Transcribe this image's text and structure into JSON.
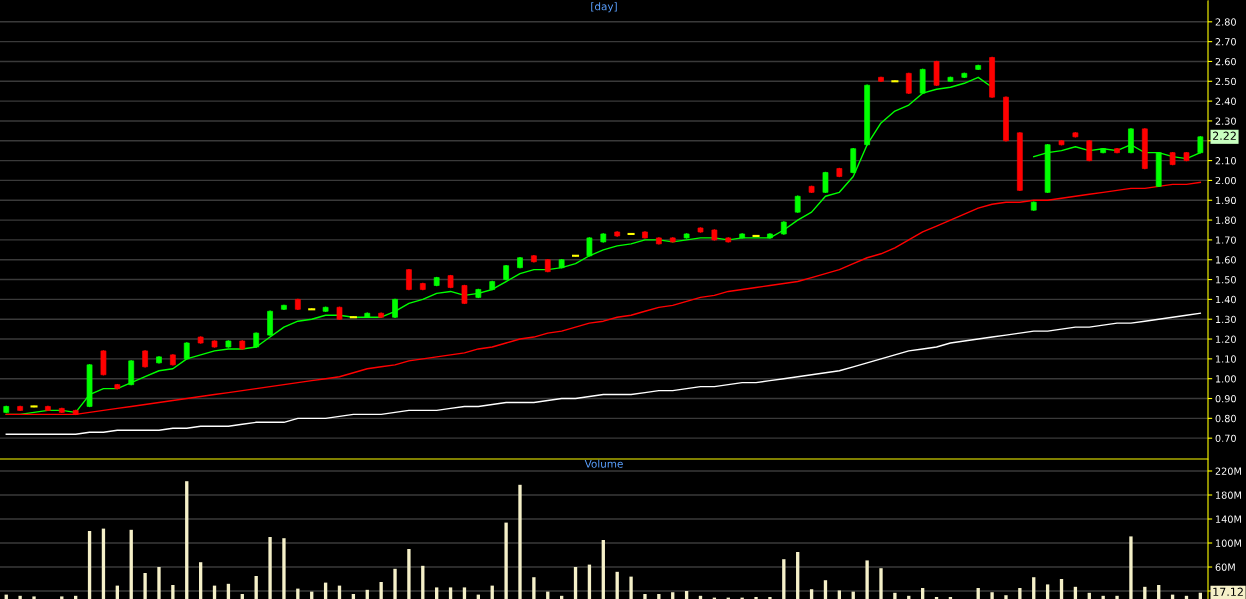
{
  "chart_data": [
    {
      "type": "candlestick",
      "title": "[day]",
      "categories": [
        null,
        null,
        null,
        null,
        null,
        null,
        null,
        null,
        null,
        null,
        null,
        null,
        null,
        null,
        null,
        null,
        null,
        null,
        null,
        null,
        null,
        null,
        null,
        null,
        null,
        null,
        null,
        null,
        null,
        null,
        null,
        null,
        null,
        null,
        null,
        null,
        null,
        null,
        null,
        null,
        null,
        null,
        null,
        null,
        null,
        null,
        null,
        null,
        null,
        null,
        null,
        null,
        null,
        null,
        null,
        null,
        null,
        null,
        null,
        null,
        null,
        null,
        null,
        null,
        null,
        null,
        null,
        null,
        null,
        null,
        null,
        null,
        null,
        null,
        null,
        null,
        null,
        null,
        null,
        null,
        null,
        null,
        null,
        null,
        null,
        null,
        null
      ],
      "ohlc": [
        [
          0.83,
          0.86,
          0.83,
          0.86
        ],
        [
          0.86,
          0.86,
          0.84,
          0.84
        ],
        [
          0.86,
          0.86,
          0.86,
          0.86
        ],
        [
          0.86,
          0.86,
          0.84,
          0.84
        ],
        [
          0.85,
          0.85,
          0.83,
          0.83
        ],
        [
          0.84,
          0.84,
          0.82,
          0.82
        ],
        [
          0.86,
          1.07,
          0.86,
          1.07
        ],
        [
          1.14,
          1.14,
          1.02,
          1.02
        ],
        [
          0.97,
          0.97,
          0.95,
          0.95
        ],
        [
          0.97,
          1.09,
          0.97,
          1.09
        ],
        [
          1.14,
          1.14,
          1.06,
          1.06
        ],
        [
          1.08,
          1.11,
          1.08,
          1.11
        ],
        [
          1.12,
          1.12,
          1.07,
          1.07
        ],
        [
          1.1,
          1.18,
          1.1,
          1.18
        ],
        [
          1.21,
          1.21,
          1.18,
          1.18
        ],
        [
          1.19,
          1.19,
          1.16,
          1.16
        ],
        [
          1.16,
          1.19,
          1.16,
          1.19
        ],
        [
          1.19,
          1.19,
          1.15,
          1.15
        ],
        [
          1.16,
          1.23,
          1.16,
          1.23
        ],
        [
          1.22,
          1.34,
          1.22,
          1.34
        ],
        [
          1.35,
          1.37,
          1.35,
          1.37
        ],
        [
          1.4,
          1.4,
          1.35,
          1.35
        ],
        [
          1.35,
          1.35,
          1.35,
          1.35
        ],
        [
          1.34,
          1.36,
          1.34,
          1.36
        ],
        [
          1.36,
          1.36,
          1.3,
          1.3
        ],
        [
          1.31,
          1.31,
          1.31,
          1.31
        ],
        [
          1.31,
          1.33,
          1.31,
          1.33
        ],
        [
          1.33,
          1.33,
          1.31,
          1.31
        ],
        [
          1.31,
          1.4,
          1.31,
          1.4
        ],
        [
          1.55,
          1.55,
          1.45,
          1.45
        ],
        [
          1.48,
          1.48,
          1.45,
          1.45
        ],
        [
          1.47,
          1.51,
          1.47,
          1.51
        ],
        [
          1.52,
          1.52,
          1.46,
          1.46
        ],
        [
          1.47,
          1.47,
          1.38,
          1.38
        ],
        [
          1.41,
          1.45,
          1.41,
          1.45
        ],
        [
          1.45,
          1.49,
          1.45,
          1.49
        ],
        [
          1.5,
          1.57,
          1.5,
          1.57
        ],
        [
          1.56,
          1.61,
          1.56,
          1.61
        ],
        [
          1.62,
          1.62,
          1.59,
          1.59
        ],
        [
          1.6,
          1.6,
          1.54,
          1.54
        ],
        [
          1.56,
          1.6,
          1.56,
          1.6
        ],
        [
          1.62,
          1.62,
          1.62,
          1.62
        ],
        [
          1.62,
          1.71,
          1.62,
          1.71
        ],
        [
          1.69,
          1.73,
          1.69,
          1.73
        ],
        [
          1.74,
          1.74,
          1.72,
          1.72
        ],
        [
          1.73,
          1.73,
          1.73,
          1.73
        ],
        [
          1.74,
          1.74,
          1.71,
          1.71
        ],
        [
          1.71,
          1.71,
          1.68,
          1.68
        ],
        [
          1.71,
          1.71,
          1.69,
          1.69
        ],
        [
          1.71,
          1.73,
          1.71,
          1.73
        ],
        [
          1.76,
          1.76,
          1.74,
          1.74
        ],
        [
          1.75,
          1.75,
          1.7,
          1.7
        ],
        [
          1.71,
          1.71,
          1.69,
          1.69
        ],
        [
          1.71,
          1.73,
          1.71,
          1.73
        ],
        [
          1.72,
          1.72,
          1.72,
          1.72
        ],
        [
          1.71,
          1.73,
          1.71,
          1.73
        ],
        [
          1.73,
          1.79,
          1.73,
          1.79
        ],
        [
          1.84,
          1.92,
          1.84,
          1.92
        ],
        [
          1.97,
          1.97,
          1.94,
          1.94
        ],
        [
          1.94,
          2.04,
          1.94,
          2.04
        ],
        [
          2.06,
          2.06,
          2.02,
          2.02
        ],
        [
          2.04,
          2.16,
          2.04,
          2.16
        ],
        [
          2.18,
          2.48,
          2.18,
          2.48
        ],
        [
          2.52,
          2.52,
          2.5,
          2.5
        ],
        [
          2.5,
          2.5,
          2.5,
          2.5
        ],
        [
          2.54,
          2.54,
          2.44,
          2.44
        ],
        [
          2.44,
          2.56,
          2.44,
          2.56
        ],
        [
          2.6,
          2.6,
          2.48,
          2.48
        ],
        [
          2.5,
          2.52,
          2.5,
          2.52
        ],
        [
          2.52,
          2.54,
          2.52,
          2.54
        ],
        [
          2.56,
          2.58,
          2.56,
          2.58
        ],
        [
          2.62,
          2.62,
          2.42,
          2.42
        ],
        [
          2.42,
          2.42,
          2.2,
          2.2
        ],
        [
          2.24,
          2.24,
          1.95,
          1.95
        ],
        [
          1.85,
          1.89,
          1.85,
          1.89
        ],
        [
          1.94,
          2.18,
          1.94,
          2.18
        ],
        [
          2.2,
          2.2,
          2.18,
          2.18
        ],
        [
          2.24,
          2.24,
          2.22,
          2.22
        ],
        [
          2.2,
          2.2,
          2.1,
          2.1
        ],
        [
          2.14,
          2.16,
          2.14,
          2.16
        ],
        [
          2.16,
          2.16,
          2.14,
          2.14
        ],
        [
          2.14,
          2.26,
          2.14,
          2.26
        ],
        [
          2.26,
          2.26,
          2.06,
          2.06
        ],
        [
          1.97,
          2.14,
          1.97,
          2.14
        ],
        [
          2.14,
          2.14,
          2.08,
          2.08
        ],
        [
          2.14,
          2.14,
          2.1,
          2.1
        ],
        [
          2.14,
          2.22,
          2.14,
          2.22
        ]
      ],
      "series": [
        {
          "type": "line",
          "color": "#00ff00",
          "values": [
            0.82,
            0.82,
            0.83,
            0.84,
            0.84,
            0.83,
            0.92,
            0.95,
            0.95,
            0.98,
            1.01,
            1.04,
            1.05,
            1.1,
            1.12,
            1.14,
            1.15,
            1.15,
            1.16,
            1.21,
            1.26,
            1.29,
            1.3,
            1.32,
            1.32,
            1.31,
            1.31,
            1.31,
            1.34,
            1.38,
            1.4,
            1.43,
            1.44,
            1.42,
            1.43,
            1.45,
            1.49,
            1.53,
            1.55,
            1.55,
            1.56,
            1.58,
            1.62,
            1.65,
            1.67,
            1.68,
            1.7,
            1.7,
            1.69,
            1.7,
            1.71,
            1.71,
            1.7,
            1.71,
            1.71,
            1.71,
            1.75,
            1.8,
            1.84,
            1.92,
            1.94,
            2.02,
            2.18,
            2.29,
            2.35,
            2.38,
            2.44,
            2.46,
            2.47,
            2.49,
            2.52,
            2.47,
            null,
            null,
            2.12,
            2.14,
            2.15,
            2.17,
            2.15,
            2.16,
            2.15,
            2.18,
            2.14,
            2.14,
            2.12,
            2.11,
            2.14
          ]
        },
        {
          "type": "line",
          "color": "#ff0000",
          "values": [
            0.82,
            0.82,
            0.82,
            0.82,
            0.82,
            0.82,
            0.83,
            0.84,
            0.85,
            0.86,
            0.87,
            0.88,
            0.89,
            0.9,
            0.91,
            0.92,
            0.93,
            0.94,
            0.95,
            0.96,
            0.97,
            0.98,
            0.99,
            1.0,
            1.01,
            1.03,
            1.05,
            1.06,
            1.07,
            1.09,
            1.1,
            1.11,
            1.12,
            1.13,
            1.15,
            1.16,
            1.18,
            1.2,
            1.21,
            1.23,
            1.24,
            1.26,
            1.28,
            1.29,
            1.31,
            1.32,
            1.34,
            1.36,
            1.37,
            1.39,
            1.41,
            1.42,
            1.44,
            1.45,
            1.46,
            1.47,
            1.48,
            1.49,
            1.51,
            1.53,
            1.55,
            1.58,
            1.61,
            1.63,
            1.66,
            1.7,
            1.74,
            1.77,
            1.8,
            1.83,
            1.86,
            1.88,
            1.89,
            1.89,
            1.9,
            1.9,
            1.91,
            1.92,
            1.93,
            1.94,
            1.95,
            1.96,
            1.96,
            1.97,
            1.98,
            1.98,
            1.99
          ]
        },
        {
          "type": "line",
          "color": "#ffffff",
          "values": [
            0.72,
            0.72,
            0.72,
            0.72,
            0.72,
            0.72,
            0.73,
            0.73,
            0.74,
            0.74,
            0.74,
            0.74,
            0.75,
            0.75,
            0.76,
            0.76,
            0.76,
            0.77,
            0.78,
            0.78,
            0.78,
            0.8,
            0.8,
            0.8,
            0.81,
            0.82,
            0.82,
            0.82,
            0.83,
            0.84,
            0.84,
            0.84,
            0.85,
            0.86,
            0.86,
            0.87,
            0.88,
            0.88,
            0.88,
            0.89,
            0.9,
            0.9,
            0.91,
            0.92,
            0.92,
            0.92,
            0.93,
            0.94,
            0.94,
            0.95,
            0.96,
            0.96,
            0.97,
            0.98,
            0.98,
            0.99,
            1.0,
            1.01,
            1.02,
            1.03,
            1.04,
            1.06,
            1.08,
            1.1,
            1.12,
            1.14,
            1.15,
            1.16,
            1.18,
            1.19,
            1.2,
            1.21,
            1.22,
            1.23,
            1.24,
            1.24,
            1.25,
            1.26,
            1.26,
            1.27,
            1.28,
            1.28,
            1.29,
            1.3,
            1.31,
            1.32,
            1.33
          ]
        }
      ],
      "ylim": [
        0.6,
        2.91
      ],
      "yticks": [
        {
          "value": 0.7,
          "label": "0.70"
        },
        {
          "value": 0.8,
          "label": "0.80"
        },
        {
          "value": 0.9,
          "label": "0.90"
        },
        {
          "value": 1.0,
          "label": "1.00"
        },
        {
          "value": 1.1,
          "label": "1.10"
        },
        {
          "value": 1.2,
          "label": "1.20"
        },
        {
          "value": 1.3,
          "label": "1.30"
        },
        {
          "value": 1.4,
          "label": "1.40"
        },
        {
          "value": 1.5,
          "label": "1.50"
        },
        {
          "value": 1.6,
          "label": "1.60"
        },
        {
          "value": 1.7,
          "label": "1.70"
        },
        {
          "value": 1.8,
          "label": "1.80"
        },
        {
          "value": 1.9,
          "label": "1.90"
        },
        {
          "value": 2.0,
          "label": "2.00"
        },
        {
          "value": 2.1,
          "label": "2.10"
        },
        {
          "value": 2.2,
          "label": null
        },
        {
          "value": 2.3,
          "label": "2.30"
        },
        {
          "value": 2.4,
          "label": "2.40"
        },
        {
          "value": 2.5,
          "label": "2.50"
        },
        {
          "value": 2.6,
          "label": "2.60"
        },
        {
          "value": 2.7,
          "label": "2.70"
        },
        {
          "value": 2.8,
          "label": "2.80"
        }
      ],
      "annotations": [
        {
          "text": "2.22",
          "y": 2.22
        }
      ],
      "grid": "y",
      "legend": false
    },
    {
      "type": "bar",
      "title": "Volume",
      "categories": [
        null,
        null,
        null,
        null,
        null,
        null,
        null,
        null,
        null,
        null,
        null,
        null,
        null,
        null,
        null,
        null,
        null,
        null,
        null,
        null,
        null,
        null,
        null,
        null,
        null,
        null,
        null,
        null,
        null,
        null,
        null,
        null,
        null,
        null,
        null,
        null,
        null,
        null,
        null,
        null,
        null,
        null,
        null,
        null,
        null,
        null,
        null,
        null,
        null,
        null,
        null,
        null,
        null,
        null,
        null,
        null,
        null,
        null,
        null,
        null,
        null,
        null,
        null,
        null,
        null,
        null,
        null,
        null,
        null,
        null,
        null,
        null,
        null,
        null,
        null,
        null,
        null,
        null,
        null,
        null,
        null,
        null,
        null,
        null,
        null,
        null,
        null
      ],
      "values": [
        14,
        12,
        11,
        null,
        11,
        12,
        120,
        124,
        29,
        122,
        50,
        60,
        30,
        203,
        68,
        29,
        32,
        15,
        45,
        110,
        108,
        24,
        19,
        34,
        29,
        15,
        22,
        35,
        57,
        90,
        62,
        26,
        26,
        26,
        14,
        29,
        134,
        197,
        43,
        19,
        12,
        60,
        64,
        105,
        52,
        44,
        15,
        15,
        18,
        20,
        12,
        9,
        9,
        9,
        10,
        10,
        73,
        85,
        23,
        38,
        21,
        19,
        71,
        58,
        17,
        12,
        25,
        10,
        10,
        null,
        25,
        18,
        13,
        25,
        43,
        31,
        40,
        27,
        17,
        12,
        12,
        111,
        27,
        30,
        14,
        12,
        17.12
      ],
      "color": "#f5f0c8",
      "ylim": [
        6.7,
        240
      ],
      "yticks": [
        {
          "value": 20,
          "label": null
        },
        {
          "value": 60,
          "label": "60M"
        },
        {
          "value": 100,
          "label": "100M"
        },
        {
          "value": 140,
          "label": "140M"
        },
        {
          "value": 180,
          "label": "180M"
        },
        {
          "value": 220,
          "label": "220M"
        }
      ],
      "annotations": [
        {
          "text": "17.12",
          "y": 17.12
        }
      ],
      "grid": "y",
      "legend": false
    }
  ]
}
